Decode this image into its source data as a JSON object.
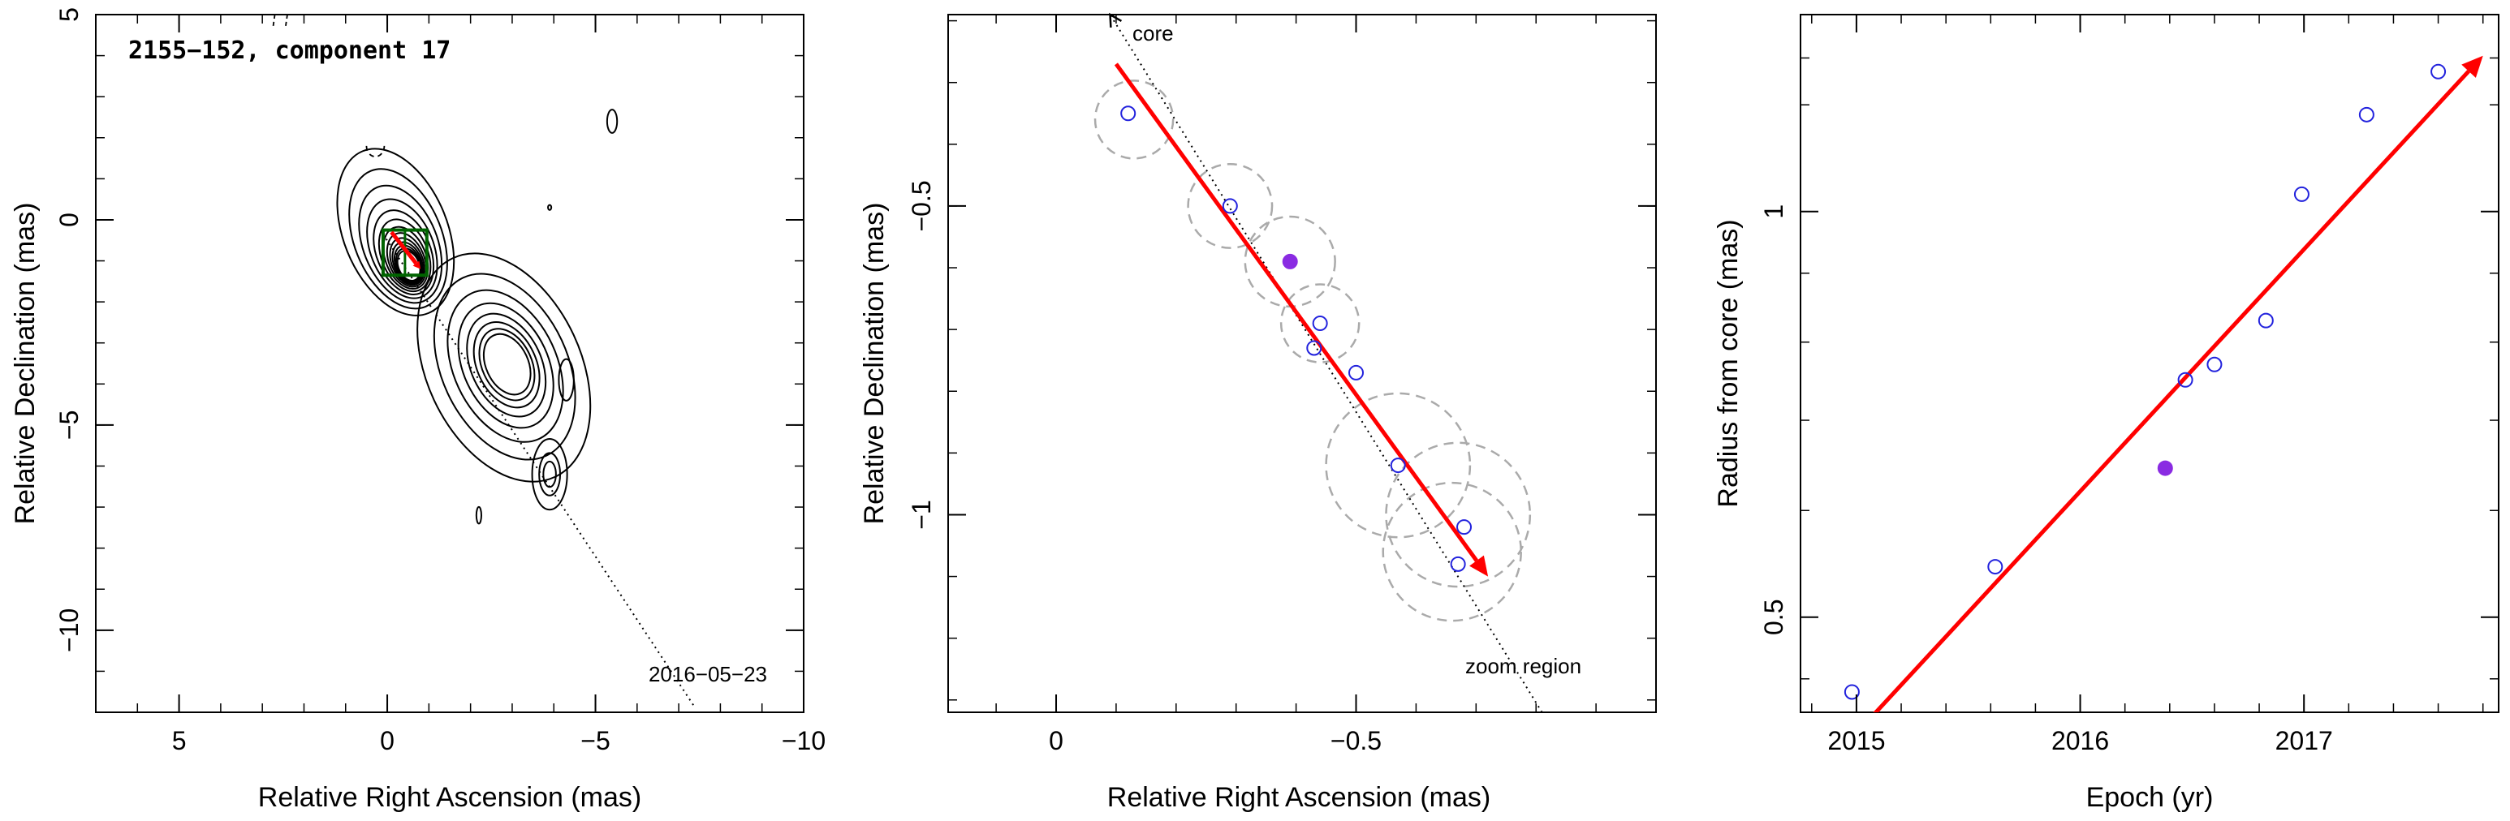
{
  "chart_data": [
    {
      "type": "scatter",
      "title": "2155−152, component 17",
      "annotation_date": "2016−05−23",
      "xlabel": "Relative Right Ascension (mas)",
      "ylabel": "Relative Declination (mas)",
      "xlim": [
        7,
        -10
      ],
      "ylim": [
        -12,
        5
      ],
      "xticks": [
        {
          "v": 5,
          "label": "5"
        },
        {
          "v": 0,
          "label": "0"
        },
        {
          "v": -5,
          "label": "−5"
        },
        {
          "v": -10,
          "label": "−10"
        }
      ],
      "yticks": [
        {
          "v": 5,
          "label": "5"
        },
        {
          "v": 0,
          "label": "0"
        },
        {
          "v": -5,
          "label": "−5"
        },
        {
          "v": -10,
          "label": "−10"
        }
      ],
      "contour_centers": {
        "core": [
          -0.2,
          -0.3
        ],
        "lobe": [
          -2.8,
          -3.6
        ],
        "knot": [
          -3.9,
          -6.2
        ]
      },
      "trajectory_line": {
        "from": [
          0.1,
          -0.35
        ],
        "to": [
          -7.4,
          -11.9
        ]
      },
      "zoom_box": {
        "x": [
          0.1,
          -0.95
        ],
        "y": [
          -0.25,
          -1.35
        ]
      },
      "motion_arrow": {
        "from": [
          -0.1,
          -0.3
        ],
        "to": [
          -0.8,
          -1.2
        ],
        "color": "#ff0000"
      },
      "box_color": "#006400",
      "grid": false
    },
    {
      "type": "scatter",
      "xlabel": "Relative Right Ascension (mas)",
      "ylabel": "Relative Declination (mas)",
      "xlim": [
        0.18,
        -1.0
      ],
      "ylim": [
        -1.32,
        -0.19
      ],
      "xticks": [
        {
          "v": 0,
          "label": "0"
        },
        {
          "v": -0.5,
          "label": "−0.5"
        }
      ],
      "yticks": [
        {
          "v": -0.5,
          "label": "−0.5"
        },
        {
          "v": -1.0,
          "label": "−1"
        }
      ],
      "core_label": "core",
      "zoom_label": "zoom region",
      "points_open": [
        {
          "x": -0.12,
          "y": -0.35
        },
        {
          "x": -0.29,
          "y": -0.5
        },
        {
          "x": -0.44,
          "y": -0.69
        },
        {
          "x": -0.43,
          "y": -0.73
        },
        {
          "x": -0.5,
          "y": -0.77
        },
        {
          "x": -0.57,
          "y": -0.92
        },
        {
          "x": -0.68,
          "y": -1.02
        },
        {
          "x": -0.67,
          "y": -1.08
        }
      ],
      "point_filled": {
        "x": -0.39,
        "y": -0.59
      },
      "circles": [
        {
          "x": -0.13,
          "y": -0.36,
          "r": 0.065
        },
        {
          "x": -0.29,
          "y": -0.5,
          "r": 0.07
        },
        {
          "x": -0.39,
          "y": -0.59,
          "r": 0.075
        },
        {
          "x": -0.44,
          "y": -0.69,
          "r": 0.065
        },
        {
          "x": -0.57,
          "y": -0.92,
          "r": 0.12
        },
        {
          "x": -0.67,
          "y": -1.0,
          "r": 0.12
        },
        {
          "x": -0.66,
          "y": -1.06,
          "r": 0.115
        }
      ],
      "motion_arrow": {
        "from": [
          -0.1,
          -0.27
        ],
        "to": [
          -0.72,
          -1.1
        ],
        "color": "#ff0000"
      },
      "core_line": {
        "from": [
          -0.09,
          -0.19
        ],
        "to": [
          -0.81,
          -1.32
        ]
      },
      "open_color": "#2222dd",
      "filled_color": "#8a2be2",
      "grid": false
    },
    {
      "type": "scatter",
      "log_y": true,
      "xlabel": "Epoch (yr)",
      "ylabel": "Radius from core (mas)",
      "xlim": [
        2014.75,
        2017.87
      ],
      "ylim": [
        0.425,
        1.4
      ],
      "xticks": [
        {
          "v": 2015,
          "label": "2015"
        },
        {
          "v": 2016,
          "label": "2016"
        },
        {
          "v": 2017,
          "label": "2017"
        }
      ],
      "yticks": [
        {
          "v": 0.5,
          "label": "0.5"
        },
        {
          "v": 1.0,
          "label": "1"
        }
      ],
      "points_open": [
        {
          "x": 2014.98,
          "y": 0.44
        },
        {
          "x": 2015.62,
          "y": 0.545
        },
        {
          "x": 2016.47,
          "y": 0.75
        },
        {
          "x": 2016.6,
          "y": 0.77
        },
        {
          "x": 2016.83,
          "y": 0.83
        },
        {
          "x": 2016.99,
          "y": 1.03
        },
        {
          "x": 2017.28,
          "y": 1.18
        },
        {
          "x": 2017.6,
          "y": 1.27
        }
      ],
      "point_filled": {
        "x": 2016.38,
        "y": 0.645
      },
      "fit_arrow": {
        "from": [
          2015.0,
          0.41
        ],
        "to": [
          2017.8,
          1.305
        ],
        "color": "#ff0000"
      },
      "open_color": "#2222dd",
      "filled_color": "#8a2be2",
      "grid": false
    }
  ]
}
